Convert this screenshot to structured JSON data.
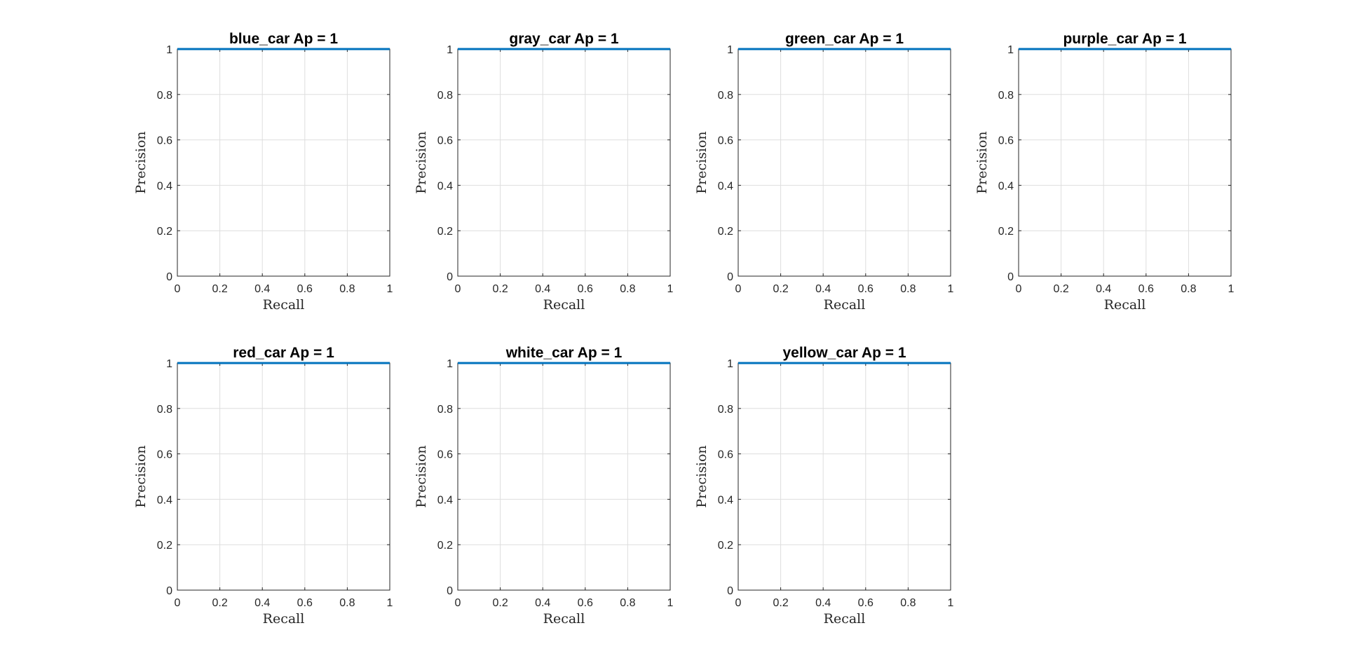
{
  "chart_data": [
    {
      "type": "line",
      "title": "blue_car Ap = 1",
      "xlabel": "Recall",
      "ylabel": "Precision",
      "xlim": [
        0,
        1
      ],
      "ylim": [
        0,
        1
      ],
      "grid": true,
      "x": [
        0,
        1
      ],
      "series": [
        {
          "values": [
            1,
            1
          ]
        }
      ],
      "xticks": [
        "0",
        "0.2",
        "0.4",
        "0.6",
        "0.8",
        "1"
      ],
      "yticks": [
        "0",
        "0.2",
        "0.4",
        "0.6",
        "0.8",
        "1"
      ]
    },
    {
      "type": "line",
      "title": "gray_car Ap = 1",
      "xlabel": "Recall",
      "ylabel": "Precision",
      "xlim": [
        0,
        1
      ],
      "ylim": [
        0,
        1
      ],
      "grid": true,
      "x": [
        0,
        1
      ],
      "series": [
        {
          "values": [
            1,
            1
          ]
        }
      ],
      "xticks": [
        "0",
        "0.2",
        "0.4",
        "0.6",
        "0.8",
        "1"
      ],
      "yticks": [
        "0",
        "0.2",
        "0.4",
        "0.6",
        "0.8",
        "1"
      ]
    },
    {
      "type": "line",
      "title": "green_car Ap = 1",
      "xlabel": "Recall",
      "ylabel": "Precision",
      "xlim": [
        0,
        1
      ],
      "ylim": [
        0,
        1
      ],
      "grid": true,
      "x": [
        0,
        1
      ],
      "series": [
        {
          "values": [
            1,
            1
          ]
        }
      ],
      "xticks": [
        "0",
        "0.2",
        "0.4",
        "0.6",
        "0.8",
        "1"
      ],
      "yticks": [
        "0",
        "0.2",
        "0.4",
        "0.6",
        "0.8",
        "1"
      ]
    },
    {
      "type": "line",
      "title": "purple_car Ap = 1",
      "xlabel": "Recall",
      "ylabel": "Precision",
      "xlim": [
        0,
        1
      ],
      "ylim": [
        0,
        1
      ],
      "grid": true,
      "x": [
        0,
        1
      ],
      "series": [
        {
          "values": [
            1,
            1
          ]
        }
      ],
      "xticks": [
        "0",
        "0.2",
        "0.4",
        "0.6",
        "0.8",
        "1"
      ],
      "yticks": [
        "0",
        "0.2",
        "0.4",
        "0.6",
        "0.8",
        "1"
      ]
    },
    {
      "type": "line",
      "title": "red_car Ap = 1",
      "xlabel": "Recall",
      "ylabel": "Precision",
      "xlim": [
        0,
        1
      ],
      "ylim": [
        0,
        1
      ],
      "grid": true,
      "x": [
        0,
        1
      ],
      "series": [
        {
          "values": [
            1,
            1
          ]
        }
      ],
      "xticks": [
        "0",
        "0.2",
        "0.4",
        "0.6",
        "0.8",
        "1"
      ],
      "yticks": [
        "0",
        "0.2",
        "0.4",
        "0.6",
        "0.8",
        "1"
      ]
    },
    {
      "type": "line",
      "title": "white_car Ap = 1",
      "xlabel": "Recall",
      "ylabel": "Precision",
      "xlim": [
        0,
        1
      ],
      "ylim": [
        0,
        1
      ],
      "grid": true,
      "x": [
        0,
        1
      ],
      "series": [
        {
          "values": [
            1,
            1
          ]
        }
      ],
      "xticks": [
        "0",
        "0.2",
        "0.4",
        "0.6",
        "0.8",
        "1"
      ],
      "yticks": [
        "0",
        "0.2",
        "0.4",
        "0.6",
        "0.8",
        "1"
      ]
    },
    {
      "type": "line",
      "title": "yellow_car Ap = 1",
      "xlabel": "Recall",
      "ylabel": "Precision",
      "xlim": [
        0,
        1
      ],
      "ylim": [
        0,
        1
      ],
      "grid": true,
      "x": [
        0,
        1
      ],
      "series": [
        {
          "values": [
            1,
            1
          ]
        }
      ],
      "xticks": [
        "0",
        "0.2",
        "0.4",
        "0.6",
        "0.8",
        "1"
      ],
      "yticks": [
        "0",
        "0.2",
        "0.4",
        "0.6",
        "0.8",
        "1"
      ]
    }
  ],
  "colors": {
    "series": "#0072BD",
    "grid": "#dedede",
    "axes": "#262626",
    "background": "#ffffff"
  }
}
